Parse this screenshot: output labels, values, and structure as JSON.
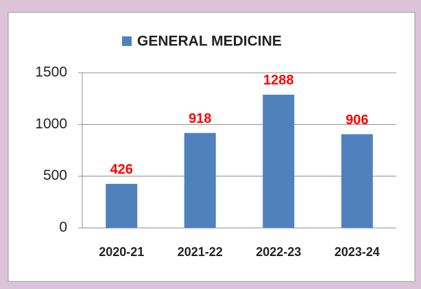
{
  "chart_data": {
    "type": "bar",
    "categories": [
      "2020-21",
      "2021-22",
      "2022-23",
      "2023-24"
    ],
    "series": [
      {
        "name": "GENERAL MEDICINE",
        "color": "#4f81bd",
        "values": [
          426,
          918,
          1288,
          906
        ]
      }
    ],
    "value_label_color": "#ff0000",
    "ylim": [
      0,
      1500
    ],
    "yticks": [
      0,
      500,
      1000,
      1500
    ],
    "grid": true
  }
}
